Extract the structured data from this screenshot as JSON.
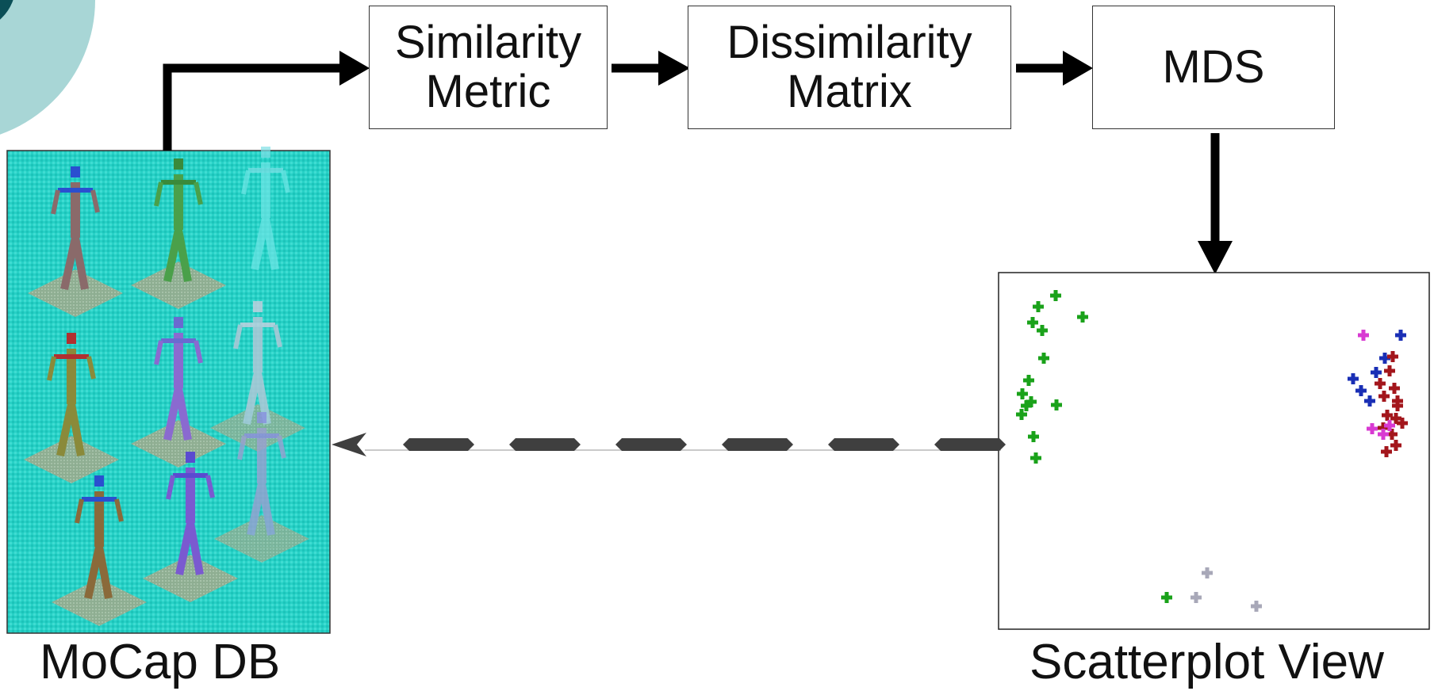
{
  "diagram": {
    "nodes": {
      "similarity": {
        "line1": "Similarity",
        "line2": "Metric"
      },
      "dissimilarity": {
        "line1": "Dissimilarity",
        "line2": "Matrix"
      },
      "mds": {
        "label": "MDS"
      }
    },
    "mocap_caption": "MoCap DB",
    "scatter_caption": "Scatterplot View"
  },
  "colors": {
    "line": "#000000",
    "dash": "#3f3f3f",
    "mocap_bg": "#27d1c6",
    "corner_circle": "#a8d6d6",
    "corner_circle_dark": "#0b4f57",
    "green": "#1aa21a",
    "blue": "#1a2fb5",
    "red": "#a3161c",
    "magenta": "#d83ad2",
    "gray": "#a8a8b8"
  },
  "icons": [
    "mocap-figure-icon",
    "scatter-point-icon",
    "arrow-right-icon",
    "arrow-down-icon",
    "arrow-left-icon"
  ]
}
